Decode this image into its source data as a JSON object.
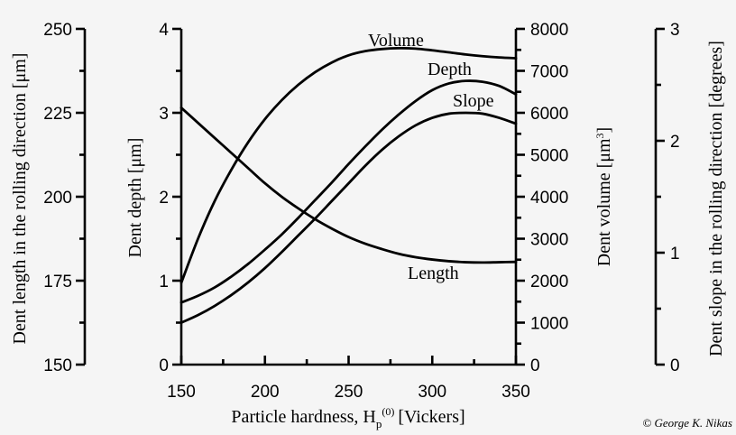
{
  "chart_data": {
    "type": "line",
    "background": "#f5f5f5",
    "line_color": "#000000",
    "grid": false,
    "legend": "none (curves labeled directly)",
    "x_axis": {
      "label": "Particle hardness, H",
      "label_sub": "p",
      "label_sup": "(0)",
      "label_units": "[Vickers]",
      "range": [
        150,
        350
      ],
      "ticks": [
        150,
        200,
        250,
        300,
        350
      ],
      "tick_labels": [
        "150",
        "200",
        "250",
        "300",
        "350"
      ]
    },
    "y_axes": {
      "length": {
        "label": "Dent length in the rolling direction [μm]",
        "range": [
          150,
          250
        ],
        "ticks": [
          150,
          175,
          200,
          225,
          250
        ],
        "tick_labels": [
          "150",
          "175",
          "200",
          "225",
          "250"
        ]
      },
      "depth": {
        "label": "Dent depth [μm]",
        "range": [
          0,
          4
        ],
        "ticks": [
          0,
          1,
          2,
          3,
          4
        ],
        "tick_labels": [
          "0",
          "1",
          "2",
          "3",
          "4"
        ]
      },
      "volume": {
        "label": "Dent volume [μm",
        "label_sup": "3",
        "label_end": "]",
        "range": [
          0,
          8000
        ],
        "ticks": [
          0,
          1000,
          2000,
          3000,
          4000,
          5000,
          6000,
          7000,
          8000
        ],
        "tick_labels": [
          "0",
          "1000",
          "2000",
          "3000",
          "4000",
          "5000",
          "6000",
          "7000",
          "8000"
        ]
      },
      "slope": {
        "label": "Dent slope in the rolling direction [degrees]",
        "range": [
          0,
          3
        ],
        "ticks": [
          0,
          1,
          2,
          3
        ],
        "tick_labels": [
          "0",
          "1",
          "2",
          "3"
        ]
      }
    },
    "series": [
      {
        "name": "Volume",
        "axis": "volume",
        "x": [
          150,
          160,
          170,
          180,
          190,
          200,
          210,
          220,
          230,
          240,
          250,
          260,
          270,
          280,
          290,
          300,
          310,
          320,
          330,
          340,
          350
        ],
        "y": [
          1950,
          3000,
          3900,
          4650,
          5300,
          5850,
          6300,
          6670,
          6970,
          7200,
          7370,
          7470,
          7520,
          7540,
          7530,
          7490,
          7440,
          7390,
          7350,
          7320,
          7300
        ]
      },
      {
        "name": "Depth",
        "axis": "depth",
        "x": [
          150,
          160,
          170,
          180,
          190,
          200,
          210,
          220,
          230,
          240,
          250,
          260,
          270,
          280,
          290,
          300,
          310,
          320,
          330,
          340,
          350
        ],
        "y": [
          0.74,
          0.82,
          0.92,
          1.05,
          1.2,
          1.37,
          1.55,
          1.75,
          1.96,
          2.17,
          2.39,
          2.6,
          2.8,
          2.98,
          3.14,
          3.27,
          3.35,
          3.38,
          3.37,
          3.32,
          3.22
        ]
      },
      {
        "name": "Slope",
        "axis": "depth",
        "x": [
          150,
          160,
          170,
          180,
          190,
          200,
          210,
          220,
          230,
          240,
          250,
          260,
          270,
          280,
          290,
          300,
          310,
          320,
          330,
          340,
          350
        ],
        "y": [
          0.5,
          0.59,
          0.7,
          0.83,
          0.98,
          1.15,
          1.34,
          1.54,
          1.74,
          1.95,
          2.16,
          2.37,
          2.56,
          2.72,
          2.85,
          2.94,
          2.99,
          3.0,
          2.99,
          2.94,
          2.87
        ]
      },
      {
        "name": "Length",
        "axis": "length",
        "x": [
          150,
          160,
          170,
          180,
          190,
          200,
          210,
          220,
          230,
          240,
          250,
          260,
          270,
          280,
          290,
          300,
          310,
          320,
          330,
          340,
          350
        ],
        "y": [
          226.5,
          222,
          217.5,
          213,
          208.5,
          204,
          200,
          196.5,
          193.3,
          190.5,
          188,
          186,
          184.4,
          183,
          182,
          181.3,
          180.8,
          180.5,
          180.4,
          180.5,
          180.6
        ]
      }
    ],
    "credit": "© George K. Nikas"
  }
}
